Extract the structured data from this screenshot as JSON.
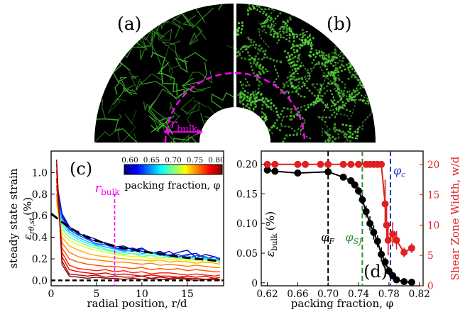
{
  "panels": {
    "a": "(a)",
    "b": "(b)",
    "c": "(c)",
    "d": "(d)"
  },
  "top": {
    "rbulk_label": "r",
    "rbulk_sub": "bulk",
    "colors": {
      "fiber_sparse": "#3fbf2c",
      "fiber_dense": "#55d13a",
      "marker": "#ff00ff"
    }
  },
  "colorbar": {
    "ticks": [
      "0.60",
      "0.65",
      "0.70",
      "0.75",
      "0.80"
    ],
    "label": "packing fraction, φ",
    "colors": [
      "#00007f",
      "#0000ff",
      "#007fff",
      "#00ffff",
      "#7fff7f",
      "#ffff00",
      "#ff7f00",
      "#ff0000",
      "#7f0000"
    ]
  },
  "chart_data": [
    {
      "panel": "c",
      "type": "line",
      "xlabel": "radial position, r/d",
      "ylabel": "steady state strain",
      "ylabel2": "ε",
      "ylabel2_sub": "rθ,st",
      "ylabel2_unit": "(%)",
      "xlim": [
        0,
        19
      ],
      "ylim": [
        -0.05,
        1.2
      ],
      "xticks": [
        "0",
        "5",
        "10",
        "15"
      ],
      "yticks": [
        "0.0",
        "0.2",
        "0.4",
        "0.6",
        "0.8",
        "1.0"
      ],
      "rbulk_x": 7.0,
      "rbulk_label": "r",
      "rbulk_sub": "bulk",
      "fit": {
        "x": [
          0,
          2,
          4,
          6,
          8,
          10,
          12,
          14,
          16,
          18.5
        ],
        "y": [
          0.62,
          0.49,
          0.4,
          0.34,
          0.3,
          0.27,
          0.245,
          0.22,
          0.2,
          0.18
        ]
      },
      "x": [
        0.6,
        1.2,
        2,
        3,
        4,
        5,
        6,
        7,
        8,
        9,
        10,
        11,
        12,
        13,
        14,
        15,
        16,
        17,
        18,
        18.6
      ],
      "series": [
        {
          "phi": 0.61,
          "values": [
            0.92,
            0.62,
            0.5,
            0.43,
            0.41,
            0.38,
            0.34,
            0.31,
            0.32,
            0.28,
            0.3,
            0.25,
            0.27,
            0.23,
            0.26,
            0.28,
            0.21,
            0.24,
            0.22,
            0.2
          ]
        },
        {
          "phi": 0.62,
          "values": [
            0.88,
            0.6,
            0.48,
            0.44,
            0.39,
            0.36,
            0.35,
            0.3,
            0.29,
            0.3,
            0.27,
            0.26,
            0.24,
            0.27,
            0.22,
            0.24,
            0.25,
            0.2,
            0.22,
            0.19
          ]
        },
        {
          "phi": 0.64,
          "values": [
            0.85,
            0.58,
            0.47,
            0.42,
            0.38,
            0.34,
            0.33,
            0.3,
            0.28,
            0.27,
            0.29,
            0.25,
            0.26,
            0.22,
            0.24,
            0.21,
            0.23,
            0.22,
            0.19,
            0.21
          ]
        },
        {
          "phi": 0.66,
          "values": [
            0.8,
            0.55,
            0.45,
            0.4,
            0.36,
            0.33,
            0.31,
            0.29,
            0.27,
            0.28,
            0.25,
            0.26,
            0.23,
            0.24,
            0.21,
            0.23,
            0.2,
            0.21,
            0.19,
            0.18
          ]
        },
        {
          "phi": 0.68,
          "values": [
            0.76,
            0.52,
            0.43,
            0.38,
            0.34,
            0.32,
            0.29,
            0.27,
            0.26,
            0.25,
            0.24,
            0.23,
            0.24,
            0.21,
            0.22,
            0.2,
            0.21,
            0.19,
            0.2,
            0.18
          ]
        },
        {
          "phi": 0.7,
          "values": [
            0.72,
            0.48,
            0.4,
            0.36,
            0.32,
            0.3,
            0.28,
            0.26,
            0.24,
            0.25,
            0.22,
            0.23,
            0.21,
            0.22,
            0.2,
            0.21,
            0.19,
            0.2,
            0.18,
            0.17
          ]
        },
        {
          "phi": 0.72,
          "values": [
            0.7,
            0.44,
            0.37,
            0.33,
            0.3,
            0.28,
            0.26,
            0.24,
            0.23,
            0.22,
            0.22,
            0.2,
            0.21,
            0.19,
            0.2,
            0.18,
            0.19,
            0.17,
            0.18,
            0.16
          ]
        },
        {
          "phi": 0.74,
          "values": [
            0.75,
            0.4,
            0.32,
            0.28,
            0.25,
            0.23,
            0.22,
            0.21,
            0.2,
            0.19,
            0.19,
            0.18,
            0.19,
            0.17,
            0.18,
            0.17,
            0.16,
            0.17,
            0.16,
            0.15
          ]
        },
        {
          "phi": 0.75,
          "values": [
            0.8,
            0.35,
            0.26,
            0.22,
            0.2,
            0.19,
            0.18,
            0.17,
            0.17,
            0.16,
            0.15,
            0.16,
            0.14,
            0.15,
            0.14,
            0.13,
            0.14,
            0.13,
            0.12,
            0.12
          ]
        },
        {
          "phi": 0.76,
          "values": [
            0.88,
            0.3,
            0.2,
            0.17,
            0.15,
            0.14,
            0.13,
            0.13,
            0.12,
            0.11,
            0.12,
            0.1,
            0.11,
            0.1,
            0.11,
            0.09,
            0.1,
            0.09,
            0.08,
            0.08
          ]
        },
        {
          "phi": 0.77,
          "values": [
            0.95,
            0.26,
            0.14,
            0.11,
            0.1,
            0.09,
            0.1,
            0.08,
            0.09,
            0.07,
            0.08,
            0.06,
            0.07,
            0.07,
            0.06,
            0.05,
            0.06,
            0.05,
            0.04,
            0.05
          ]
        },
        {
          "phi": 0.78,
          "values": [
            1.02,
            0.22,
            0.1,
            0.08,
            0.07,
            0.06,
            0.07,
            0.05,
            0.06,
            0.05,
            0.04,
            0.05,
            0.04,
            0.04,
            0.03,
            0.04,
            0.03,
            0.04,
            0.02,
            0.03
          ]
        },
        {
          "phi": 0.79,
          "values": [
            1.08,
            0.18,
            0.06,
            0.05,
            0.04,
            0.05,
            0.03,
            0.04,
            0.03,
            0.03,
            0.04,
            0.02,
            0.03,
            0.02,
            0.03,
            0.02,
            0.02,
            0.01,
            0.02,
            0.01
          ]
        },
        {
          "phi": 0.8,
          "values": [
            1.12,
            0.15,
            0.04,
            0.03,
            0.02,
            0.03,
            0.02,
            0.02,
            0.01,
            0.02,
            0.01,
            0.02,
            0.01,
            0.01,
            0.02,
            0.01,
            0.0,
            0.01,
            0.01,
            0.0
          ]
        }
      ]
    },
    {
      "panel": "d",
      "type": "line",
      "xlabel": "packing fraction, φ",
      "ylabel": "ε",
      "ylabel_sub": "bulk",
      "ylabel_unit": "(%)",
      "ylabel_right": "Shear Zone Width, w/d",
      "xlim": [
        0.612,
        0.825
      ],
      "ylim": [
        -0.005,
        0.222
      ],
      "ylim_right": [
        0,
        22.2
      ],
      "xticks": [
        "0.62",
        "0.66",
        "0.70",
        "0.74",
        "0.78",
        "0.82"
      ],
      "yticks": [
        "0",
        "0.05",
        "0.10",
        "0.15",
        "0.20"
      ],
      "yticks_right": [
        "0",
        "5",
        "10",
        "15",
        "20"
      ],
      "vlines": [
        {
          "x": 0.7,
          "label": "φ",
          "sub": "F",
          "color": "#000000"
        },
        {
          "x": 0.745,
          "label": "φ",
          "sub": "SJ",
          "color": "#2e8b2e"
        },
        {
          "x": 0.782,
          "label": "φ",
          "sub": "c",
          "color": "#2233cc"
        }
      ],
      "series": [
        {
          "name": "ε_bulk",
          "color": "#000000",
          "axis": "left",
          "x": [
            0.62,
            0.63,
            0.66,
            0.7,
            0.72,
            0.73,
            0.735,
            0.74,
            0.745,
            0.75,
            0.755,
            0.76,
            0.765,
            0.77,
            0.775,
            0.78,
            0.785,
            0.79,
            0.8,
            0.81
          ],
          "values": [
            0.19,
            0.188,
            0.185,
            0.187,
            0.178,
            0.172,
            0.165,
            0.155,
            0.14,
            0.12,
            0.1,
            0.085,
            0.07,
            0.048,
            0.035,
            0.02,
            0.012,
            0.005,
            0.002,
            0.001
          ],
          "err": [
            0.004,
            0.004,
            0.004,
            0.004,
            0.005,
            0.005,
            0.006,
            0.007,
            0.008,
            0.01,
            0.012,
            0.012,
            0.01,
            0.012,
            0.008,
            0.007,
            0.006,
            0.004,
            0.002,
            0.001
          ]
        },
        {
          "name": "w/d",
          "color": "#e02020",
          "axis": "right",
          "x": [
            0.62,
            0.63,
            0.66,
            0.67,
            0.69,
            0.7,
            0.72,
            0.73,
            0.74,
            0.75,
            0.755,
            0.76,
            0.765,
            0.77,
            0.775,
            0.777,
            0.779,
            0.785,
            0.79,
            0.8,
            0.81
          ],
          "values": [
            20,
            20,
            20,
            20,
            20,
            20,
            20,
            20,
            20,
            20,
            20,
            20,
            20,
            20,
            13.5,
            10,
            7.5,
            8.5,
            7.5,
            5.5,
            6.2
          ],
          "err": [
            0,
            0,
            0,
            0,
            0,
            0,
            0,
            0,
            0,
            0,
            0,
            0,
            0,
            0,
            4,
            3,
            2.5,
            2,
            1.5,
            0.8,
            0.8
          ]
        }
      ]
    }
  ]
}
